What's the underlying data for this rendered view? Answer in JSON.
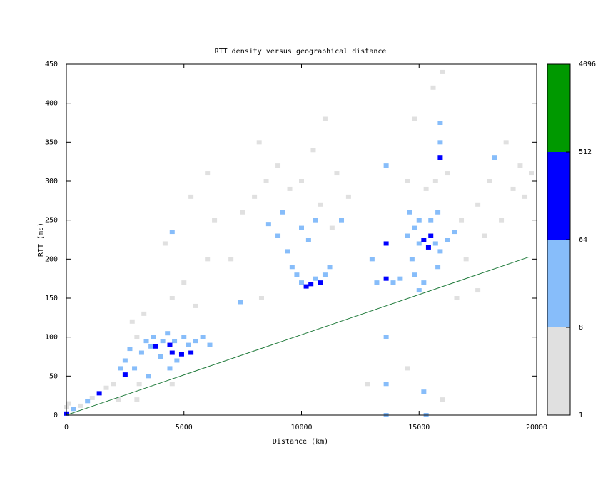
{
  "chart_data": {
    "type": "heatmap",
    "title": "RTT density versus geographical distance",
    "xlabel": "Distance (km)",
    "ylabel": "RTT (ms)",
    "xlim": [
      0,
      20000
    ],
    "ylim": [
      0,
      450
    ],
    "xticks": [
      0,
      5000,
      10000,
      15000,
      20000
    ],
    "yticks": [
      0,
      50,
      100,
      150,
      200,
      250,
      300,
      350,
      400,
      450
    ],
    "colorbar": {
      "ticks": [
        1,
        8,
        64,
        512,
        4096
      ],
      "colors": [
        "#e0e0e0",
        "#87bdfa",
        "#0000ff",
        "#009900"
      ],
      "log_scale": true
    },
    "line": {
      "x": [
        0,
        19700
      ],
      "y": [
        0,
        203
      ],
      "color": "#1f7a3a"
    },
    "cells": [
      [
        0,
        2,
        90
      ],
      [
        0,
        10,
        6
      ],
      [
        100,
        15,
        3
      ],
      [
        300,
        8,
        12
      ],
      [
        600,
        12,
        5
      ],
      [
        900,
        18,
        9
      ],
      [
        1100,
        22,
        4
      ],
      [
        1400,
        28,
        70
      ],
      [
        1700,
        35,
        3
      ],
      [
        2000,
        40,
        5
      ],
      [
        2300,
        60,
        10
      ],
      [
        2500,
        52,
        80
      ],
      [
        2500,
        70,
        20
      ],
      [
        2700,
        85,
        12
      ],
      [
        2900,
        60,
        9
      ],
      [
        3000,
        100,
        5
      ],
      [
        3200,
        80,
        15
      ],
      [
        3400,
        95,
        20
      ],
      [
        3600,
        88,
        30
      ],
      [
        3700,
        100,
        18
      ],
      [
        3800,
        88,
        100
      ],
      [
        4000,
        75,
        25
      ],
      [
        4100,
        95,
        40
      ],
      [
        4300,
        105,
        15
      ],
      [
        4400,
        90,
        120
      ],
      [
        4500,
        80,
        200
      ],
      [
        4600,
        95,
        45
      ],
      [
        4700,
        70,
        20
      ],
      [
        4900,
        78,
        90
      ],
      [
        5000,
        100,
        30
      ],
      [
        5200,
        90,
        25
      ],
      [
        5300,
        80,
        110
      ],
      [
        5500,
        95,
        12
      ],
      [
        5800,
        100,
        15
      ],
      [
        6100,
        90,
        10
      ],
      [
        4400,
        60,
        10
      ],
      [
        3100,
        40,
        4
      ],
      [
        3500,
        50,
        12
      ],
      [
        2800,
        120,
        3
      ],
      [
        3300,
        130,
        5
      ],
      [
        4500,
        150,
        4
      ],
      [
        5000,
        170,
        3
      ],
      [
        5500,
        140,
        5
      ],
      [
        6000,
        200,
        3
      ],
      [
        6300,
        250,
        4
      ],
      [
        6000,
        310,
        3
      ],
      [
        5300,
        280,
        2
      ],
      [
        4200,
        220,
        3
      ],
      [
        2200,
        20,
        3
      ],
      [
        3000,
        20,
        4
      ],
      [
        4500,
        40,
        3
      ],
      [
        4500,
        235,
        10
      ],
      [
        9000,
        230,
        15
      ],
      [
        9200,
        260,
        12
      ],
      [
        8600,
        245,
        10
      ],
      [
        9600,
        190,
        20
      ],
      [
        9800,
        180,
        30
      ],
      [
        10000,
        170,
        40
      ],
      [
        10200,
        165,
        150
      ],
      [
        10400,
        168,
        200
      ],
      [
        10600,
        175,
        45
      ],
      [
        10800,
        170,
        120
      ],
      [
        11000,
        180,
        30
      ],
      [
        11200,
        190,
        15
      ],
      [
        9400,
        210,
        9
      ],
      [
        10000,
        240,
        12
      ],
      [
        10300,
        225,
        10
      ],
      [
        10600,
        250,
        9
      ],
      [
        11300,
        240,
        6
      ],
      [
        11700,
        250,
        12
      ],
      [
        8000,
        280,
        5
      ],
      [
        8500,
        300,
        4
      ],
      [
        9000,
        320,
        3
      ],
      [
        9500,
        290,
        5
      ],
      [
        10000,
        300,
        3
      ],
      [
        10800,
        270,
        5
      ],
      [
        11500,
        310,
        4
      ],
      [
        12000,
        280,
        3
      ],
      [
        8200,
        350,
        2
      ],
      [
        7500,
        260,
        3
      ],
      [
        7000,
        200,
        2
      ],
      [
        8300,
        150,
        3
      ],
      [
        7400,
        145,
        10
      ],
      [
        10500,
        340,
        2
      ],
      [
        11000,
        380,
        2
      ],
      [
        13600,
        0,
        20
      ],
      [
        13600,
        40,
        10
      ],
      [
        13600,
        100,
        8
      ],
      [
        13600,
        175,
        65
      ],
      [
        13600,
        220,
        70
      ],
      [
        13600,
        320,
        10
      ],
      [
        13200,
        170,
        12
      ],
      [
        13000,
        200,
        10
      ],
      [
        12800,
        40,
        3
      ],
      [
        13900,
        170,
        15
      ],
      [
        14200,
        175,
        12
      ],
      [
        14500,
        230,
        20
      ],
      [
        14700,
        200,
        15
      ],
      [
        14800,
        240,
        25
      ],
      [
        15000,
        220,
        30
      ],
      [
        15200,
        225,
        120
      ],
      [
        15400,
        215,
        90
      ],
      [
        15500,
        230,
        150
      ],
      [
        15700,
        220,
        40
      ],
      [
        15900,
        210,
        25
      ],
      [
        16200,
        225,
        15
      ],
      [
        16500,
        235,
        10
      ],
      [
        14600,
        260,
        12
      ],
      [
        15000,
        250,
        18
      ],
      [
        15500,
        250,
        20
      ],
      [
        14800,
        180,
        10
      ],
      [
        15200,
        170,
        12
      ],
      [
        15000,
        160,
        9
      ],
      [
        15800,
        190,
        9
      ],
      [
        15800,
        260,
        12
      ],
      [
        15900,
        330,
        80
      ],
      [
        15900,
        350,
        20
      ],
      [
        15900,
        375,
        10
      ],
      [
        15700,
        300,
        5
      ],
      [
        15300,
        290,
        4
      ],
      [
        16200,
        310,
        3
      ],
      [
        14800,
        380,
        2
      ],
      [
        15600,
        420,
        3
      ],
      [
        16000,
        440,
        2
      ],
      [
        14500,
        300,
        3
      ],
      [
        16800,
        250,
        6
      ],
      [
        17000,
        200,
        4
      ],
      [
        15200,
        30,
        8
      ],
      [
        15300,
        0,
        12
      ],
      [
        16000,
        20,
        3
      ],
      [
        14500,
        60,
        3
      ],
      [
        17500,
        270,
        4
      ],
      [
        18000,
        300,
        3
      ],
      [
        18200,
        330,
        10
      ],
      [
        18500,
        250,
        4
      ],
      [
        19000,
        290,
        3
      ],
      [
        19500,
        280,
        5
      ],
      [
        19800,
        310,
        3
      ],
      [
        19300,
        320,
        2
      ],
      [
        18700,
        350,
        2
      ],
      [
        17800,
        230,
        3
      ],
      [
        16600,
        150,
        3
      ],
      [
        17500,
        160,
        2
      ]
    ]
  }
}
